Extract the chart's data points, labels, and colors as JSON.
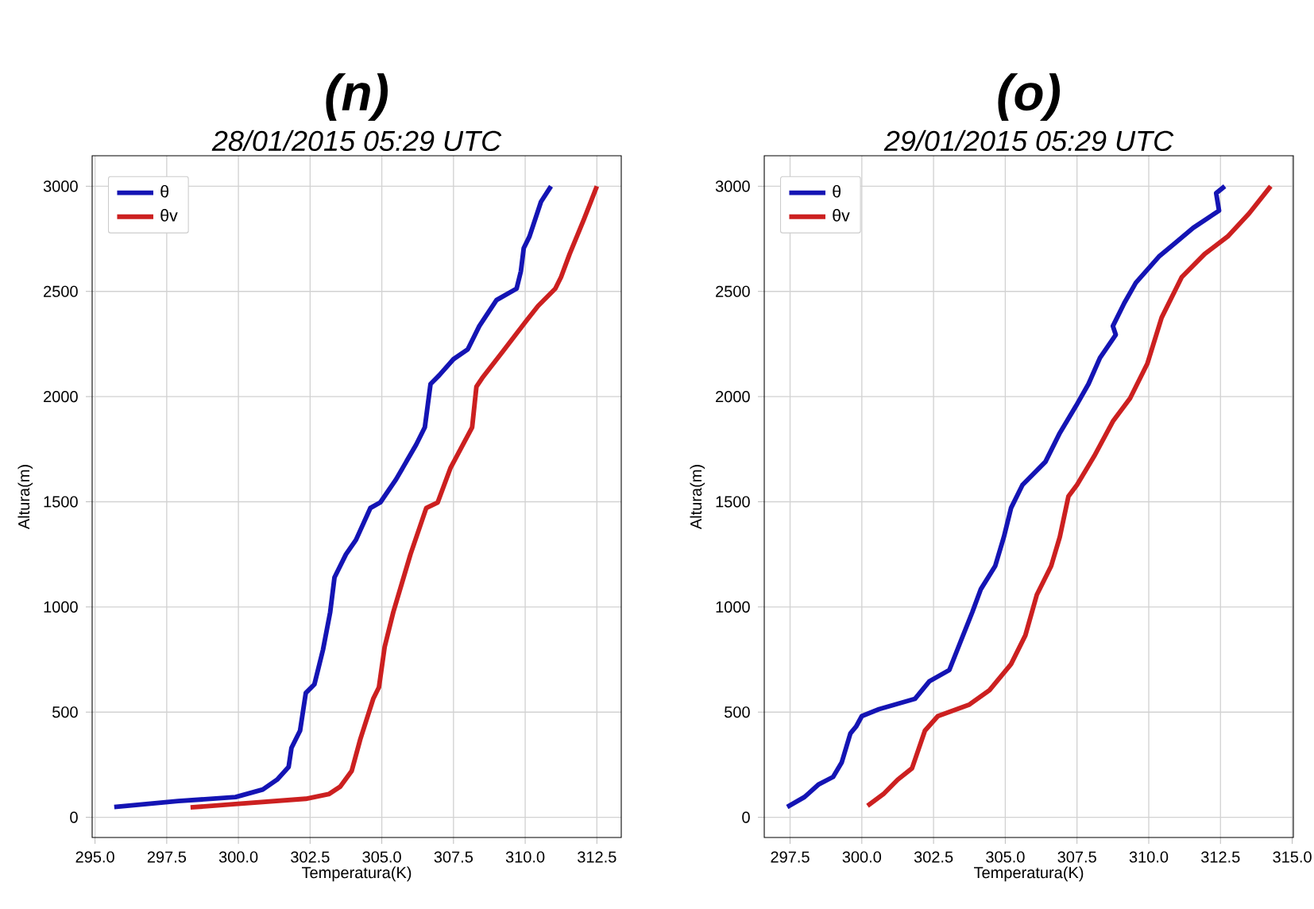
{
  "chart_data": [
    {
      "type": "line",
      "title": "(n)",
      "subtitle": "28/01/2015 05:29 UTC",
      "xlabel": "Temperatura(K)",
      "ylabel": "Altura(m)",
      "grid": true,
      "legend": "top left",
      "line_style": "solid",
      "xlim": [
        294.9,
        313.35
      ],
      "ylim": [
        -96,
        3145
      ],
      "xticks": [
        {
          "value": 295.0,
          "label": "295.0"
        },
        {
          "value": 297.5,
          "label": "297.5"
        },
        {
          "value": 300.0,
          "label": "300.0"
        },
        {
          "value": 302.5,
          "label": "302.5"
        },
        {
          "value": 305.0,
          "label": "305.0"
        },
        {
          "value": 307.5,
          "label": "307.5"
        },
        {
          "value": 310.0,
          "label": "310.0"
        },
        {
          "value": 312.5,
          "label": "312.5"
        }
      ],
      "yticks": [
        0,
        500,
        1000,
        1500,
        2000,
        2500,
        3000
      ],
      "series": [
        {
          "name": "θ",
          "color": "#1414b4",
          "x": [
            295.67,
            297.9,
            299.9,
            300.85,
            301.35,
            301.75,
            301.85,
            302.15,
            302.35,
            302.65,
            302.95,
            303.2,
            303.35,
            303.75,
            304.1,
            304.6,
            304.95,
            305.5,
            306.2,
            306.5,
            306.7,
            307.0,
            307.5,
            308.0,
            308.4,
            309.0,
            309.7,
            309.85,
            309.95,
            310.15,
            310.55,
            310.9
          ],
          "values": [
            49,
            77,
            96,
            132,
            179,
            239,
            330,
            412,
            591,
            632,
            797,
            975,
            1140,
            1250,
            1319,
            1470,
            1497,
            1607,
            1772,
            1854,
            2060,
            2101,
            2178,
            2225,
            2335,
            2459,
            2513,
            2596,
            2706,
            2761,
            2926,
            3000
          ]
        },
        {
          "name": "θv",
          "color": "#cc2020",
          "x": [
            298.33,
            299.9,
            302.35,
            303.15,
            303.55,
            303.95,
            304.25,
            304.7,
            304.9,
            305.1,
            305.4,
            306.0,
            306.55,
            306.95,
            307.4,
            308.15,
            308.3,
            308.5,
            309.2,
            310.05,
            310.45,
            311.05,
            311.25,
            311.55,
            312.05,
            312.5
          ],
          "values": [
            47,
            63,
            88,
            110,
            146,
            220,
            371,
            563,
            618,
            810,
            975,
            1250,
            1470,
            1497,
            1662,
            1854,
            2047,
            2088,
            2211,
            2362,
            2431,
            2513,
            2568,
            2678,
            2843,
            3000
          ]
        }
      ]
    },
    {
      "type": "line",
      "title": "(o)",
      "subtitle": "29/01/2015 05:29 UTC",
      "xlabel": "Temperatura(K)",
      "ylabel": "Altura(m)",
      "grid": true,
      "legend": "top left",
      "line_style": "solid",
      "xlim": [
        296.6,
        315.04
      ],
      "ylim": [
        -96,
        3145
      ],
      "xticks": [
        {
          "value": 297.5,
          "label": "297.5"
        },
        {
          "value": 300.0,
          "label": "300.0"
        },
        {
          "value": 302.5,
          "label": "302.5"
        },
        {
          "value": 305.0,
          "label": "305.0"
        },
        {
          "value": 307.5,
          "label": "307.5"
        },
        {
          "value": 310.0,
          "label": "310.0"
        },
        {
          "value": 312.5,
          "label": "312.5"
        },
        {
          "value": 315.0,
          "label": "315.0"
        }
      ],
      "yticks": [
        0,
        500,
        1000,
        1500,
        2000,
        2500,
        3000
      ],
      "series": [
        {
          "name": "θ",
          "color": "#1414b4",
          "x": [
            297.4,
            298.0,
            298.5,
            299.0,
            299.3,
            299.6,
            299.8,
            300.0,
            300.6,
            301.85,
            302.35,
            303.05,
            303.45,
            303.85,
            304.15,
            304.65,
            304.95,
            305.2,
            305.6,
            306.4,
            306.9,
            307.5,
            307.9,
            308.3,
            308.85,
            308.75,
            309.15,
            309.55,
            310.35,
            310.95,
            311.55,
            312.45,
            312.35,
            312.65
          ],
          "values": [
            49,
            96,
            157,
            192,
            261,
            398,
            431,
            481,
            514,
            563,
            646,
            700,
            838,
            975,
            1085,
            1195,
            1332,
            1470,
            1580,
            1690,
            1827,
            1964,
            2060,
            2184,
            2294,
            2335,
            2445,
            2541,
            2665,
            2733,
            2802,
            2884,
            2967,
            3000
          ]
        },
        {
          "name": "θv",
          "color": "#cc2020",
          "x": [
            300.2,
            300.75,
            301.25,
            301.75,
            302.2,
            302.65,
            303.75,
            304.45,
            305.2,
            305.7,
            306.1,
            306.6,
            306.9,
            307.2,
            307.5,
            308.1,
            308.75,
            309.35,
            309.95,
            310.45,
            311.15,
            311.95,
            312.75,
            313.5,
            314.25
          ],
          "values": [
            55,
            110,
            179,
            233,
            412,
            481,
            536,
            604,
            728,
            865,
            1058,
            1195,
            1332,
            1525,
            1580,
            1717,
            1882,
            1992,
            2156,
            2376,
            2568,
            2678,
            2761,
            2871,
            3000
          ]
        }
      ]
    }
  ]
}
